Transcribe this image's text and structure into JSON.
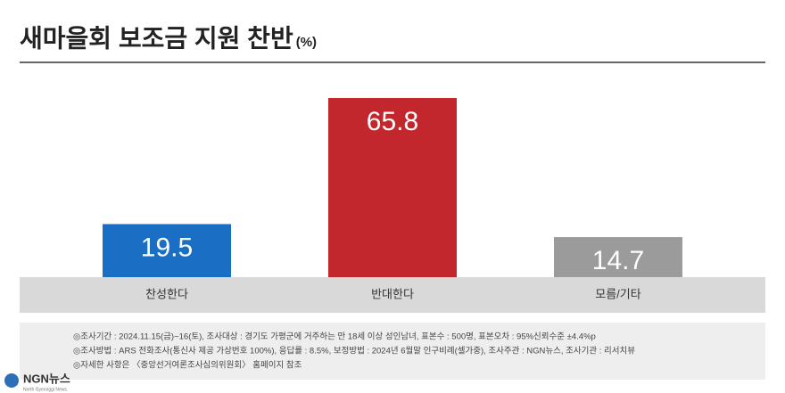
{
  "chart_data": {
    "type": "bar",
    "title": "새마을회 보조금 지원 찬반",
    "subtitle": "(%)",
    "categories": [
      "찬성한다",
      "반대한다",
      "모름/기타"
    ],
    "values": [
      19.5,
      65.8,
      14.7
    ],
    "colors": [
      "#1a6fc4",
      "#c1272d",
      "#9b9b9b"
    ],
    "notes": [
      "◎조사기간 : 2024.11.15(금)~16(토), 조사대상 : 경기도 가평군에 거주하는 만 18세 이상 성인남녀, 표본수 : 500명, 표본오차 : 95%신뢰수준 ±4.4%p",
      "◎조사방법 : ARS 전화조사(통신사 제공 가상번호 100%), 응답률 : 8.5%, 보정방법 : 2024년 6월말 인구비례(셀가중), 조사주관 : NGN뉴스, 조사기관 : 리서치뷰",
      "◎자세한 사항은 〈중앙선거여론조사심의위원회〉 홈페이지 참조"
    ],
    "logo": "NGN뉴스",
    "logo_sub": "North Gyeonggi News"
  }
}
